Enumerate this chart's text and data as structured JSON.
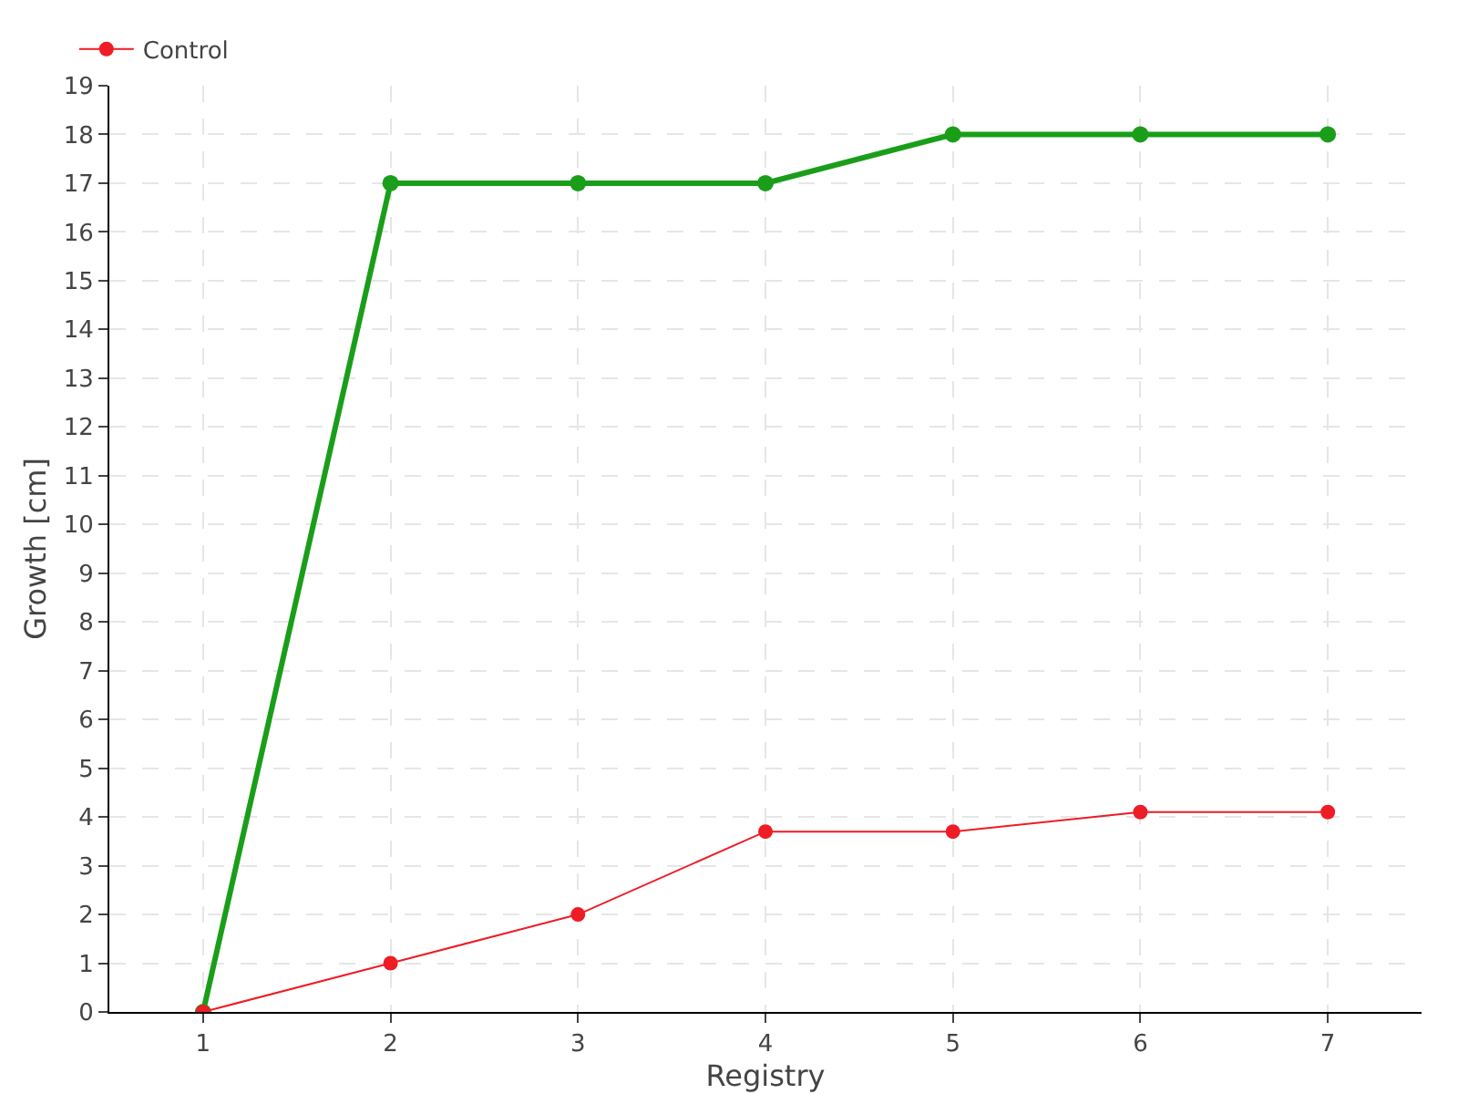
{
  "chart_data": {
    "type": "line",
    "xlabel": "Registry",
    "ylabel": "Growth [cm]",
    "categories": [
      "1",
      "2",
      "3",
      "4",
      "5",
      "6",
      "7"
    ],
    "series": [
      {
        "color": "#1a9e1a",
        "values": [
          0,
          17,
          17,
          17,
          18,
          18,
          18
        ]
      },
      {
        "name": "Control",
        "color": "#ee1c25",
        "values": [
          0,
          1,
          2,
          3.7,
          3.7,
          4.1,
          4.1
        ]
      }
    ],
    "ylim": [
      0,
      19
    ],
    "yticks": [
      0,
      1,
      2,
      3,
      4,
      5,
      6,
      7,
      8,
      9,
      10,
      11,
      12,
      13,
      14,
      15,
      16,
      17,
      18,
      19
    ],
    "grid": true,
    "legend": "top left",
    "marker": "circle",
    "line_style": "solid"
  }
}
